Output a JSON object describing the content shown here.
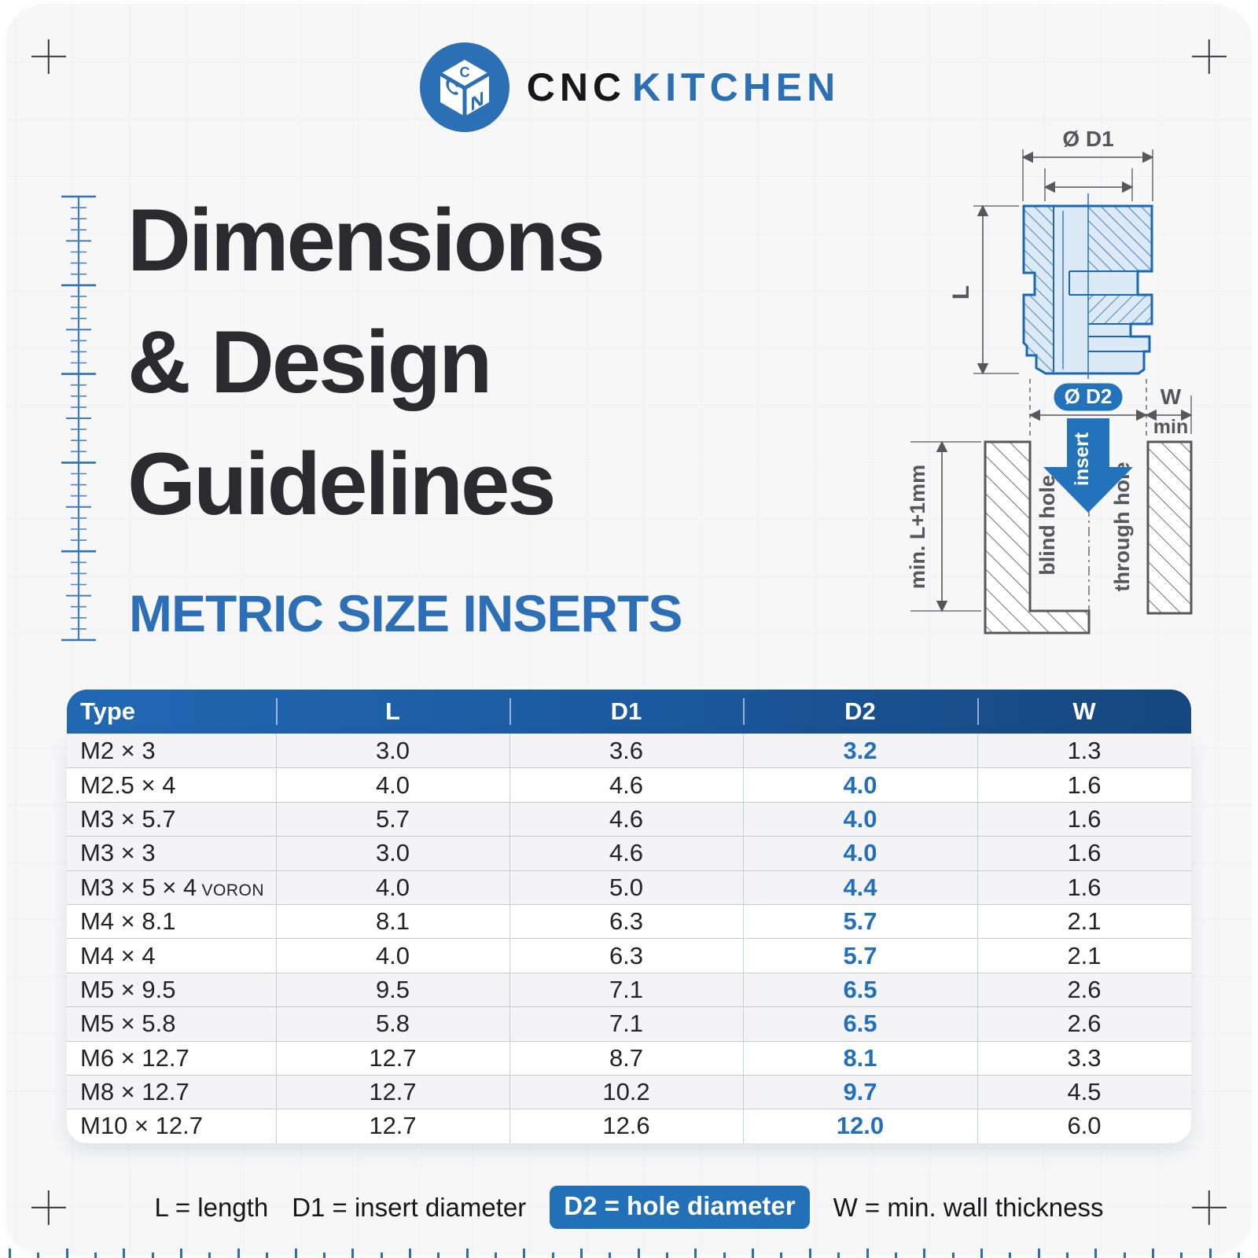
{
  "brand": {
    "cnc": "CNC",
    "kitchen": "KITCHEN"
  },
  "title": {
    "line1": "Dimensions",
    "line2": "& Design",
    "line3": "Guidelines"
  },
  "subtitle": "METRIC SIZE INSERTS",
  "colors": {
    "accent_blue": "#2271b8",
    "brand_blue": "#2b6fb5",
    "d2_value_blue": "#2470b8",
    "header_gradient_left": "#2168b3",
    "header_gradient_right": "#16477e",
    "insert_fill": "#dce9f7",
    "insert_line": "#1a67b3",
    "drawing_gray": "#56575b",
    "title_dark": "#2b2a2e"
  },
  "diagram": {
    "labels": {
      "d1": "Ø D1",
      "l": "L",
      "d2": "Ø D2",
      "w": "W",
      "w_min": "min",
      "insert": "insert",
      "blind_hole": "blind hole",
      "through_hole": "through hole",
      "min_depth": "min. L+1mm"
    }
  },
  "table": {
    "headers": [
      "Type",
      "L",
      "D1",
      "D2",
      "W"
    ],
    "rows": [
      {
        "group": "M2",
        "type": "M2 × 3",
        "type_suffix": "",
        "l": "3.0",
        "d1": "3.6",
        "d2": "3.2",
        "w": "1.3"
      },
      {
        "group": "M2.5",
        "type": "M2.5 × 4",
        "type_suffix": "",
        "l": "4.0",
        "d1": "4.6",
        "d2": "4.0",
        "w": "1.6"
      },
      {
        "group": "M3",
        "type": "M3 × 5.7",
        "type_suffix": "",
        "l": "5.7",
        "d1": "4.6",
        "d2": "4.0",
        "w": "1.6"
      },
      {
        "group": "M3",
        "type": "M3 × 3",
        "type_suffix": "",
        "l": "3.0",
        "d1": "4.6",
        "d2": "4.0",
        "w": "1.6"
      },
      {
        "group": "M3",
        "type": "M3 × 5 × 4",
        "type_suffix": "VORON",
        "l": "4.0",
        "d1": "5.0",
        "d2": "4.4",
        "w": "1.6"
      },
      {
        "group": "M4",
        "type": "M4 × 8.1",
        "type_suffix": "",
        "l": "8.1",
        "d1": "6.3",
        "d2": "5.7",
        "w": "2.1"
      },
      {
        "group": "M4",
        "type": "M4 × 4",
        "type_suffix": "",
        "l": "4.0",
        "d1": "6.3",
        "d2": "5.7",
        "w": "2.1"
      },
      {
        "group": "M5",
        "type": "M5 × 9.5",
        "type_suffix": "",
        "l": "9.5",
        "d1": "7.1",
        "d2": "6.5",
        "w": "2.6"
      },
      {
        "group": "M5",
        "type": "M5 × 5.8",
        "type_suffix": "",
        "l": "5.8",
        "d1": "7.1",
        "d2": "6.5",
        "w": "2.6"
      },
      {
        "group": "M6",
        "type": "M6 × 12.7",
        "type_suffix": "",
        "l": "12.7",
        "d1": "8.7",
        "d2": "8.1",
        "w": "3.3"
      },
      {
        "group": "M8",
        "type": "M8 × 12.7",
        "type_suffix": "",
        "l": "12.7",
        "d1": "10.2",
        "d2": "9.7",
        "w": "4.5"
      },
      {
        "group": "M10",
        "type": "M10 × 12.7",
        "type_suffix": "",
        "l": "12.7",
        "d1": "12.6",
        "d2": "12.0",
        "w": "6.0"
      }
    ]
  },
  "legend": {
    "items": [
      {
        "text": "L = length",
        "pill": false
      },
      {
        "text": "D1 = insert diameter",
        "pill": false
      },
      {
        "text": "D2 = hole diameter",
        "pill": true
      },
      {
        "text": "W = min. wall thickness",
        "pill": false
      }
    ]
  }
}
